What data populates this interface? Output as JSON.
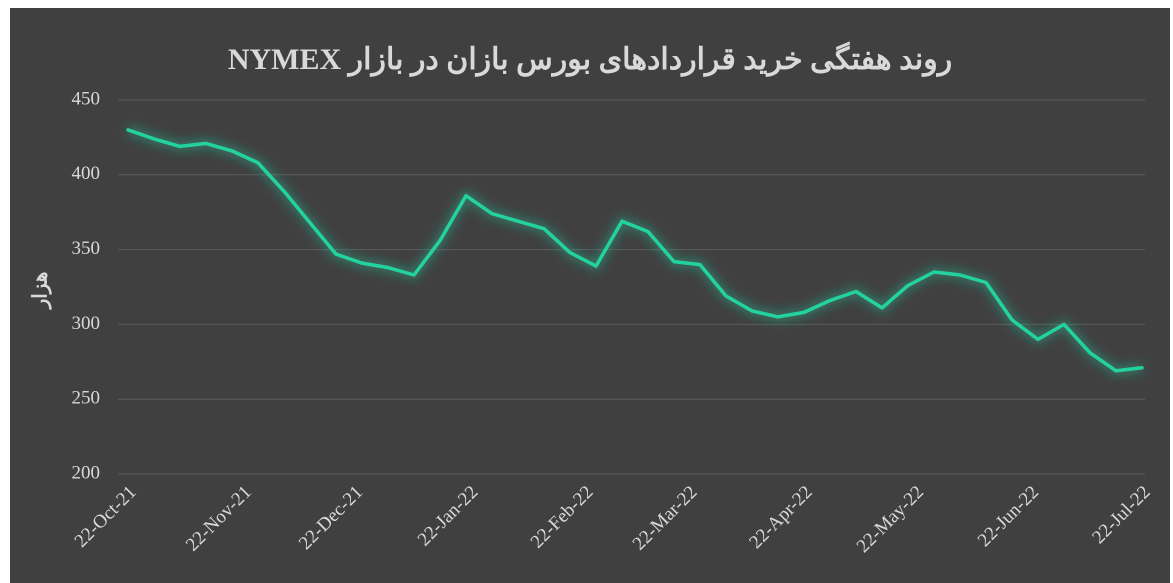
{
  "chart_data": {
    "type": "line",
    "title": "روند هفتگی خرید قراردادهای بورس بازان در بازار NYMEX",
    "y_label": "هزار",
    "x": [
      "2021-10-22",
      "2021-10-29",
      "2021-11-05",
      "2021-11-12",
      "2021-11-19",
      "2021-11-26",
      "2021-12-03",
      "2021-12-10",
      "2021-12-17",
      "2021-12-24",
      "2021-12-31",
      "2022-01-07",
      "2022-01-14",
      "2022-01-21",
      "2022-01-28",
      "2022-02-04",
      "2022-02-11",
      "2022-02-18",
      "2022-02-25",
      "2022-03-04",
      "2022-03-11",
      "2022-03-18",
      "2022-03-25",
      "2022-04-01",
      "2022-04-08",
      "2022-04-15",
      "2022-04-22",
      "2022-04-29",
      "2022-05-06",
      "2022-05-13",
      "2022-05-20",
      "2022-05-27",
      "2022-06-03",
      "2022-06-10",
      "2022-06-17",
      "2022-06-24",
      "2022-07-01",
      "2022-07-08",
      "2022-07-15",
      "2022-07-22"
    ],
    "series": [
      {
        "name": "NYMEX",
        "color": "#22d3a0",
        "values": [
          430,
          424,
          419,
          421,
          416,
          408,
          389,
          368,
          347,
          341,
          338,
          333,
          356,
          386,
          374,
          369,
          364,
          348,
          339,
          369,
          362,
          342,
          340,
          319,
          309,
          305,
          308,
          316,
          322,
          311,
          326,
          335,
          333,
          328,
          303,
          290,
          300,
          281,
          269,
          271
        ]
      }
    ],
    "xlim": [
      "2021-10-22",
      "2022-07-22"
    ],
    "xticks": [
      {
        "value": "2021-10-22",
        "label": "22-Oct-21"
      },
      {
        "value": "2021-11-22",
        "label": "22-Nov-21"
      },
      {
        "value": "2021-12-22",
        "label": "22-Dec-21"
      },
      {
        "value": "2022-01-22",
        "label": "22-Jan-22"
      },
      {
        "value": "2022-02-22",
        "label": "22-Feb-22"
      },
      {
        "value": "2022-03-22",
        "label": "22-Mar-22"
      },
      {
        "value": "2022-04-22",
        "label": "22-Apr-22"
      },
      {
        "value": "2022-05-22",
        "label": "22-May-22"
      },
      {
        "value": "2022-06-22",
        "label": "22-Jun-22"
      },
      {
        "value": "2022-07-22",
        "label": "22-Jul-22"
      }
    ],
    "ylim": [
      200,
      450
    ],
    "yticks": [
      200,
      250,
      300,
      350,
      400,
      450
    ],
    "grid": true
  }
}
